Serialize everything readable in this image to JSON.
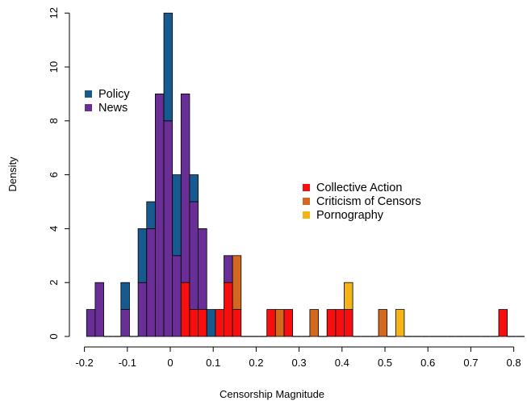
{
  "chart_data": {
    "type": "bar",
    "stacked": true,
    "xlabel": "Censorship Magnitude",
    "ylabel": "Density",
    "xlim": [
      -0.2,
      0.82
    ],
    "ylim": [
      0,
      12
    ],
    "xticks": [
      "-0.2",
      "-0.1",
      "0",
      "0.1",
      "0.2",
      "0.3",
      "0.4",
      "0.5",
      "0.6",
      "0.7",
      "0.8"
    ],
    "yticks": [
      "0",
      "2",
      "4",
      "6",
      "8",
      "10",
      "12"
    ],
    "bin_width": 0.02,
    "bins": [
      {
        "x0": -0.195,
        "segments": [
          {
            "series": "News",
            "value": 1
          }
        ]
      },
      {
        "x0": -0.175,
        "segments": [
          {
            "series": "News",
            "value": 2
          }
        ]
      },
      {
        "x0": -0.115,
        "segments": [
          {
            "series": "News",
            "value": 1
          },
          {
            "series": "Policy",
            "value": 1
          }
        ]
      },
      {
        "x0": -0.075,
        "segments": [
          {
            "series": "News",
            "value": 2
          },
          {
            "series": "Policy",
            "value": 2
          }
        ]
      },
      {
        "x0": -0.055,
        "segments": [
          {
            "series": "News",
            "value": 4
          },
          {
            "series": "Policy",
            "value": 1
          }
        ]
      },
      {
        "x0": -0.035,
        "segments": [
          {
            "series": "News",
            "value": 9
          }
        ]
      },
      {
        "x0": -0.015,
        "segments": [
          {
            "series": "News",
            "value": 8
          },
          {
            "series": "Policy",
            "value": 4
          }
        ]
      },
      {
        "x0": 0.005,
        "segments": [
          {
            "series": "News",
            "value": 3
          },
          {
            "series": "Policy",
            "value": 3
          }
        ]
      },
      {
        "x0": 0.025,
        "segments": [
          {
            "series": "Collective Action",
            "value": 2
          },
          {
            "series": "News",
            "value": 7
          }
        ]
      },
      {
        "x0": 0.045,
        "segments": [
          {
            "series": "Collective Action",
            "value": 1
          },
          {
            "series": "News",
            "value": 4
          },
          {
            "series": "Policy",
            "value": 1
          }
        ]
      },
      {
        "x0": 0.065,
        "segments": [
          {
            "series": "Collective Action",
            "value": 1
          },
          {
            "series": "News",
            "value": 3
          }
        ]
      },
      {
        "x0": 0.085,
        "segments": [
          {
            "series": "Policy",
            "value": 1
          }
        ]
      },
      {
        "x0": 0.105,
        "segments": [
          {
            "series": "Collective Action",
            "value": 1
          }
        ]
      },
      {
        "x0": 0.125,
        "segments": [
          {
            "series": "Collective Action",
            "value": 2
          },
          {
            "series": "News",
            "value": 1
          }
        ]
      },
      {
        "x0": 0.145,
        "segments": [
          {
            "series": "Collective Action",
            "value": 1
          },
          {
            "series": "Criticism of Censors",
            "value": 2
          }
        ]
      },
      {
        "x0": 0.225,
        "segments": [
          {
            "series": "Collective Action",
            "value": 1
          }
        ]
      },
      {
        "x0": 0.245,
        "segments": [
          {
            "series": "Criticism of Censors",
            "value": 1
          }
        ]
      },
      {
        "x0": 0.265,
        "segments": [
          {
            "series": "Collective Action",
            "value": 1
          }
        ]
      },
      {
        "x0": 0.325,
        "segments": [
          {
            "series": "Criticism of Censors",
            "value": 1
          }
        ]
      },
      {
        "x0": 0.365,
        "segments": [
          {
            "series": "Collective Action",
            "value": 1
          }
        ]
      },
      {
        "x0": 0.385,
        "segments": [
          {
            "series": "Collective Action",
            "value": 1
          }
        ]
      },
      {
        "x0": 0.405,
        "segments": [
          {
            "series": "Collective Action",
            "value": 1
          },
          {
            "series": "Pornography",
            "value": 1
          }
        ]
      },
      {
        "x0": 0.485,
        "segments": [
          {
            "series": "Criticism of Censors",
            "value": 1
          }
        ]
      },
      {
        "x0": 0.525,
        "segments": [
          {
            "series": "Pornography",
            "value": 1
          }
        ]
      },
      {
        "x0": 0.765,
        "segments": [
          {
            "series": "Collective Action",
            "value": 1
          }
        ]
      }
    ],
    "legends": [
      {
        "position": "top-left",
        "entries": [
          {
            "name": "Policy",
            "color": "#175a8f"
          },
          {
            "name": "News",
            "color": "#6a2f96"
          }
        ]
      },
      {
        "position": "center-right",
        "entries": [
          {
            "name": "Collective Action",
            "color": "#f70e0e"
          },
          {
            "name": "Criticism of Censors",
            "color": "#d2691e"
          },
          {
            "name": "Pornography",
            "color": "#f5b416"
          }
        ]
      }
    ],
    "grid": false
  }
}
